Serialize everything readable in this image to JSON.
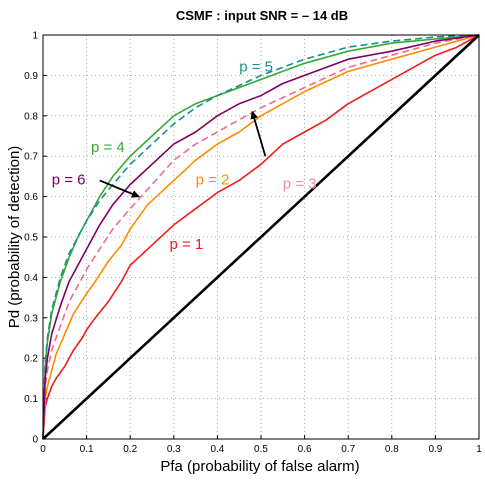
{
  "chart_data": {
    "type": "line",
    "title": "CSMF   :   input SNR  =  – 14 dB",
    "xlabel": "Pfa (probability of false alarm)",
    "ylabel": "Pd (probability of detection)",
    "xlim": [
      0,
      1
    ],
    "ylim": [
      0,
      1
    ],
    "xticks": [
      "0",
      "0.1",
      "0.2",
      "0.3",
      "0.4",
      "0.5",
      "0.6",
      "0.7",
      "0.8",
      "0.9",
      "1"
    ],
    "yticks": [
      "0",
      "0.1",
      "0.2",
      "0.3",
      "0.4",
      "0.5",
      "0.6",
      "0.7",
      "0.8",
      "0.9",
      "1"
    ],
    "grid": true,
    "legend": "none",
    "series": [
      {
        "name": "p = 1",
        "color": "#ee1c1c",
        "dash": "solid",
        "x": [
          0,
          0.005,
          0.01,
          0.02,
          0.03,
          0.05,
          0.07,
          0.09,
          0.1,
          0.12,
          0.15,
          0.18,
          0.2,
          0.25,
          0.3,
          0.35,
          0.4,
          0.45,
          0.5,
          0.55,
          0.6,
          0.65,
          0.7,
          0.75,
          0.8,
          0.85,
          0.9,
          0.95,
          1.0
        ],
        "y": [
          0,
          0.08,
          0.1,
          0.13,
          0.15,
          0.18,
          0.22,
          0.25,
          0.27,
          0.3,
          0.34,
          0.39,
          0.43,
          0.48,
          0.53,
          0.57,
          0.61,
          0.64,
          0.68,
          0.73,
          0.76,
          0.79,
          0.83,
          0.86,
          0.89,
          0.92,
          0.95,
          0.97,
          1.0
        ]
      },
      {
        "name": "p = 2",
        "color": "#ff8c00",
        "dash": "solid",
        "x": [
          0,
          0.005,
          0.01,
          0.02,
          0.03,
          0.05,
          0.07,
          0.1,
          0.12,
          0.15,
          0.18,
          0.2,
          0.24,
          0.3,
          0.35,
          0.4,
          0.45,
          0.5,
          0.55,
          0.6,
          0.7,
          0.8,
          0.9,
          1.0
        ],
        "y": [
          0,
          0.1,
          0.13,
          0.17,
          0.21,
          0.26,
          0.31,
          0.36,
          0.39,
          0.44,
          0.48,
          0.52,
          0.58,
          0.64,
          0.69,
          0.73,
          0.76,
          0.8,
          0.83,
          0.86,
          0.91,
          0.94,
          0.97,
          1.0
        ]
      },
      {
        "name": "p = 3",
        "color": "#ee6a8f",
        "dash": "dashed",
        "x": [
          0,
          0.005,
          0.01,
          0.02,
          0.04,
          0.06,
          0.08,
          0.1,
          0.13,
          0.16,
          0.2,
          0.25,
          0.3,
          0.35,
          0.4,
          0.45,
          0.5,
          0.6,
          0.7,
          0.8,
          0.9,
          1.0
        ],
        "y": [
          0,
          0.13,
          0.17,
          0.22,
          0.28,
          0.34,
          0.38,
          0.42,
          0.47,
          0.52,
          0.57,
          0.63,
          0.69,
          0.73,
          0.76,
          0.79,
          0.82,
          0.87,
          0.92,
          0.95,
          0.98,
          1.0
        ]
      },
      {
        "name": "p = 4",
        "color": "#33aa33",
        "dash": "solid",
        "x": [
          0,
          0.005,
          0.01,
          0.02,
          0.04,
          0.06,
          0.08,
          0.1,
          0.13,
          0.16,
          0.2,
          0.25,
          0.3,
          0.35,
          0.4,
          0.5,
          0.6,
          0.7,
          0.8,
          0.9,
          1.0
        ],
        "y": [
          0,
          0.18,
          0.24,
          0.31,
          0.39,
          0.45,
          0.5,
          0.54,
          0.6,
          0.65,
          0.7,
          0.75,
          0.8,
          0.83,
          0.85,
          0.89,
          0.93,
          0.96,
          0.98,
          0.99,
          1.0
        ]
      },
      {
        "name": "p = 5",
        "color": "#1a8f8f",
        "dash": "dashed",
        "x": [
          0,
          0.005,
          0.01,
          0.02,
          0.04,
          0.06,
          0.08,
          0.1,
          0.13,
          0.16,
          0.2,
          0.25,
          0.3,
          0.35,
          0.4,
          0.5,
          0.6,
          0.7,
          0.8,
          0.9,
          1.0
        ],
        "y": [
          0,
          0.19,
          0.25,
          0.32,
          0.4,
          0.46,
          0.5,
          0.54,
          0.59,
          0.63,
          0.68,
          0.73,
          0.78,
          0.82,
          0.85,
          0.9,
          0.94,
          0.97,
          0.985,
          0.995,
          1.0
        ]
      },
      {
        "name": "p = 6",
        "color": "#800060",
        "dash": "solid",
        "x": [
          0,
          0.005,
          0.01,
          0.02,
          0.04,
          0.06,
          0.08,
          0.1,
          0.13,
          0.16,
          0.2,
          0.25,
          0.3,
          0.35,
          0.4,
          0.45,
          0.5,
          0.55,
          0.6,
          0.7,
          0.8,
          0.9,
          1.0
        ],
        "y": [
          0,
          0.15,
          0.2,
          0.26,
          0.33,
          0.39,
          0.43,
          0.47,
          0.53,
          0.58,
          0.63,
          0.68,
          0.73,
          0.76,
          0.8,
          0.83,
          0.85,
          0.88,
          0.9,
          0.94,
          0.96,
          0.985,
          1.0
        ]
      },
      {
        "name": "chance diagonal",
        "color": "#000000",
        "dash": "solid",
        "x": [
          0,
          1
        ],
        "y": [
          0,
          1
        ]
      }
    ],
    "annotations": [
      {
        "text": "p = 1",
        "color": "#ee1c1c",
        "x": 0.29,
        "y": 0.47
      },
      {
        "text": "p = 2",
        "color": "#ff8c00",
        "x": 0.35,
        "y": 0.63
      },
      {
        "text": "p = 3",
        "color": "#ee8ea8",
        "x": 0.55,
        "y": 0.62
      },
      {
        "text": "p = 4",
        "color": "#33aa33",
        "x": 0.11,
        "y": 0.71
      },
      {
        "text": "p = 5",
        "color": "#1a8f8f",
        "x": 0.45,
        "y": 0.91
      },
      {
        "text": "p = 6",
        "color": "#800060",
        "x": 0.02,
        "y": 0.63
      }
    ],
    "arrows": [
      {
        "from": [
          0.13,
          0.64
        ],
        "to": [
          0.22,
          0.6
        ],
        "color": "#000000"
      },
      {
        "from": [
          0.51,
          0.7
        ],
        "to": [
          0.48,
          0.81
        ],
        "color": "#000000"
      }
    ]
  }
}
